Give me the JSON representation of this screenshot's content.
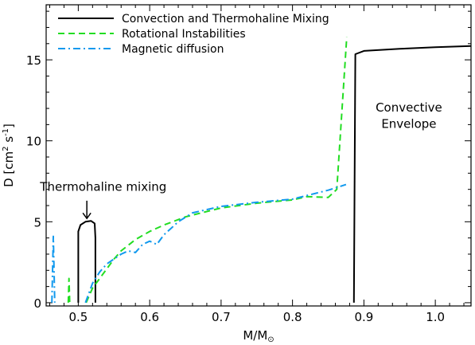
{
  "chart_data": {
    "type": "line",
    "xlabel": "M/M",
    "xlabel_sub": "⊙",
    "ylabel": "D [cm",
    "ylabel_sup1": "2",
    "ylabel_mid": " s",
    "ylabel_sup2": "-1",
    "ylabel_end": "]",
    "xlim": [
      0.455,
      1.05
    ],
    "ylim": [
      -0.2,
      18.4
    ],
    "x_ticks": [
      "0.5",
      "0.6",
      "0.7",
      "0.8",
      "0.9",
      "1.0"
    ],
    "x_tick_values": [
      0.5,
      0.6,
      0.7,
      0.8,
      0.9,
      1.0
    ],
    "y_ticks": [
      "0",
      "5",
      "10",
      "15"
    ],
    "y_tick_values": [
      0,
      5,
      10,
      15
    ],
    "grid": false,
    "legend_position": "top-left",
    "series": [
      {
        "name": "Convection and Thermohaline Mixing",
        "color": "#000000",
        "dash": "solid",
        "segments": [
          [
            [
              0.5,
              0.0
            ],
            [
              0.5,
              4.4
            ],
            [
              0.503,
              4.8
            ],
            [
              0.51,
              5.0
            ],
            [
              0.518,
              5.05
            ],
            [
              0.523,
              4.9
            ],
            [
              0.524,
              4.0
            ],
            [
              0.524,
              0.0
            ]
          ],
          [
            [
              0.886,
              0.0
            ],
            [
              0.888,
              15.35
            ],
            [
              0.9,
              15.55
            ],
            [
              0.95,
              15.68
            ],
            [
              1.0,
              15.78
            ],
            [
              1.05,
              15.85
            ]
          ]
        ]
      },
      {
        "name": "Rotational Instabilities",
        "color": "#22dd22",
        "dash": "dashed",
        "segments": [
          [
            [
              0.486,
              0.0
            ],
            [
              0.487,
              1.5
            ],
            [
              0.488,
              0.0
            ]
          ],
          [
            [
              0.511,
              0.0
            ],
            [
              0.515,
              0.4
            ],
            [
              0.52,
              0.9
            ],
            [
              0.53,
              1.5
            ],
            [
              0.54,
              2.1
            ],
            [
              0.55,
              2.7
            ],
            [
              0.56,
              3.2
            ],
            [
              0.58,
              3.9
            ],
            [
              0.6,
              4.4
            ],
            [
              0.62,
              4.8
            ],
            [
              0.65,
              5.3
            ],
            [
              0.7,
              5.85
            ],
            [
              0.75,
              6.15
            ],
            [
              0.8,
              6.35
            ],
            [
              0.82,
              6.55
            ],
            [
              0.85,
              6.5
            ],
            [
              0.862,
              7.0
            ],
            [
              0.876,
              16.4
            ]
          ]
        ]
      },
      {
        "name": "Magnetic diffusion",
        "color": "#1199ee",
        "dash": "dashdot",
        "segments": [
          [
            [
              0.463,
              0.0
            ],
            [
              0.465,
              4.1
            ],
            [
              0.467,
              0.0
            ]
          ],
          [
            [
              0.51,
              0.0
            ],
            [
              0.515,
              0.6
            ],
            [
              0.52,
              1.2
            ],
            [
              0.53,
              1.9
            ],
            [
              0.54,
              2.4
            ],
            [
              0.55,
              2.7
            ],
            [
              0.56,
              3.0
            ],
            [
              0.57,
              3.2
            ],
            [
              0.58,
              3.1
            ],
            [
              0.59,
              3.6
            ],
            [
              0.6,
              3.8
            ],
            [
              0.61,
              3.6
            ],
            [
              0.62,
              4.2
            ],
            [
              0.63,
              4.6
            ],
            [
              0.64,
              5.0
            ],
            [
              0.66,
              5.55
            ],
            [
              0.7,
              5.95
            ],
            [
              0.75,
              6.2
            ],
            [
              0.8,
              6.4
            ],
            [
              0.85,
              6.95
            ],
            [
              0.875,
              7.3
            ]
          ]
        ]
      }
    ],
    "annotations": [
      {
        "text": "Thermohaline mixing",
        "x": 0.535,
        "y": 6.9,
        "anchor": "middle"
      },
      {
        "text": "Convective",
        "x": 0.963,
        "y": 11.8,
        "anchor": "middle"
      },
      {
        "text": "Envelope",
        "x": 0.963,
        "y": 10.8,
        "anchor": "middle"
      }
    ],
    "arrow": {
      "x": 0.512,
      "y_start": 6.3,
      "y_end": 5.2
    }
  }
}
